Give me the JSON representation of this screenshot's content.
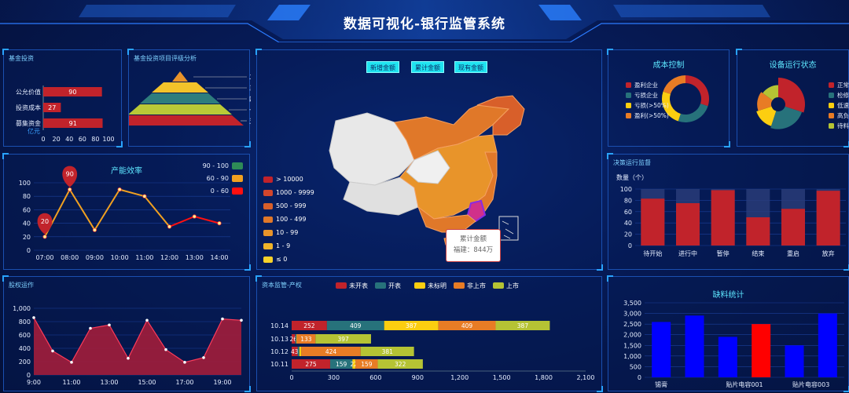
{
  "header": {
    "title": "数据可视化-银行监管系统"
  },
  "panels": {
    "fund_investment": "基金投资",
    "rating_analysis": "基金投资项目评级分析",
    "capacity": "产能效率",
    "equity": "股权运作",
    "cost_control": "成本控制",
    "device_status": "设备运行状态",
    "decision": "决策运行监督",
    "capital": "资本监管-产权",
    "material": "缺料统计"
  },
  "map": {
    "buttons": [
      "新增金额",
      "累计金额",
      "现有金额"
    ],
    "legend": [
      {
        "label": "> 10000",
        "color": "#c1232b"
      },
      {
        "label": "1000 - 9999",
        "color": "#d2462c"
      },
      {
        "label": "500 - 999",
        "color": "#d85f2a"
      },
      {
        "label": "100 - 499",
        "color": "#e07829"
      },
      {
        "label": "10 - 99",
        "color": "#e8942a"
      },
      {
        "label": "1 - 9",
        "color": "#f0b42a"
      },
      {
        "label": "≤ 0",
        "color": "#f7d22a"
      }
    ],
    "tooltip": {
      "title": "累计金额",
      "value": "福建：844万"
    }
  },
  "chart_data": [
    {
      "type": "bar",
      "orientation": "horizontal",
      "categories": [
        "公允价值",
        "投资成本",
        "募集资金"
      ],
      "values": [
        90,
        27,
        91
      ],
      "xlabel": "亿元",
      "xticks": [
        "0",
        "20",
        "40",
        "60",
        "80",
        "100"
      ],
      "xlim": [
        0,
        100
      ]
    },
    {
      "type": "pyramid",
      "categories": [
        "二星",
        "三星",
        "四星",
        "一星",
        "五星"
      ],
      "colors": [
        "#e8932a",
        "#f3c32a",
        "#2e7d7d",
        "#b9c937",
        "#c1232b"
      ]
    },
    {
      "type": "line",
      "x": [
        "07:00",
        "08:00",
        "09:00",
        "10:00",
        "11:00",
        "12:00",
        "13:00",
        "14:00"
      ],
      "values": [
        20,
        90,
        30,
        90,
        80,
        35,
        50,
        40
      ],
      "ylim": [
        0,
        100
      ],
      "yticks": [
        "0",
        "20",
        "40",
        "60",
        "80",
        "100"
      ],
      "markers": [
        {
          "label": "90",
          "index": 1
        },
        {
          "label": "20",
          "index": 0
        }
      ],
      "visual_map": [
        {
          "label": "90 - 100",
          "color": "#2e8b57"
        },
        {
          "label": "60 - 90",
          "color": "#f0a020"
        },
        {
          "label": "0 - 60",
          "color": "#ff1010"
        }
      ]
    },
    {
      "type": "area",
      "x": [
        "9:00",
        "10:00",
        "11:00",
        "12:00",
        "13:00",
        "14:00",
        "15:00",
        "16:00",
        "17:00",
        "18:00",
        "19:00",
        "20:00"
      ],
      "values": [
        860,
        360,
        190,
        700,
        750,
        250,
        820,
        380,
        190,
        260,
        840,
        820
      ],
      "xticks": [
        "9:00",
        "11:00",
        "13:00",
        "15:00",
        "17:00",
        "19:00"
      ],
      "ylim": [
        0,
        1000
      ],
      "yticks": [
        "0",
        "200",
        "400",
        "600",
        "800",
        "1,000"
      ]
    },
    {
      "type": "pie",
      "title": "成本控制",
      "categories": [
        "盈利企业",
        "亏损企业",
        "亏损(>50%)",
        "盈利(>50%)"
      ],
      "legend_text": [
        "盈利企业",
        "亏损企业",
        "亏损(>50%)",
        "盈利(>50%)"
      ],
      "values": [
        30,
        25,
        25,
        20
      ],
      "colors": [
        "#c1232b",
        "#27727b",
        "#fcce10",
        "#e87c25"
      ]
    },
    {
      "type": "pie",
      "title": "设备运行状态",
      "categories": [
        "正常",
        "检修",
        "低速",
        "高负荷",
        "待料"
      ],
      "legend_text": [
        "正常",
        "检修",
        "低速",
        "高负",
        "待料"
      ],
      "values": [
        30,
        25,
        15,
        15,
        15
      ],
      "colors": [
        "#c1232b",
        "#27727b",
        "#fcce10",
        "#e87c25",
        "#b5c334"
      ]
    },
    {
      "type": "bar",
      "ylabel": "数量（个）",
      "categories": [
        "待开始",
        "进行中",
        "暂停",
        "结束",
        "重启",
        "放弃"
      ],
      "values": [
        83,
        75,
        98,
        50,
        65,
        97
      ],
      "ylim": [
        0,
        100
      ],
      "yticks": [
        "0",
        "20",
        "40",
        "60",
        "80",
        "100"
      ],
      "color": "#c1232b"
    },
    {
      "type": "bar",
      "orientation": "horizontal",
      "stacked": true,
      "categories": [
        "10.14",
        "10.13",
        "10.12",
        "10.11"
      ],
      "series": [
        {
          "name": "未开表",
          "color": "#c1232b",
          "values": [
            252,
            26,
            43,
            275
          ],
          "labels": [
            "252",
            "26",
            "43",
            "275"
          ]
        },
        {
          "name": "开表",
          "color": "#27727b",
          "values": [
            409,
            8,
            12,
            159
          ],
          "labels": [
            "409",
            "",
            "",
            "159"
          ]
        },
        {
          "name": "未标明",
          "color": "#fcce10",
          "values": [
            387,
            3,
            14,
            22
          ],
          "labels": [
            "387",
            "",
            "",
            "22"
          ]
        },
        {
          "name": "非上市",
          "color": "#e87c25",
          "values": [
            409,
            133,
            424,
            159
          ],
          "labels": [
            "409",
            "133",
            "424",
            "159"
          ]
        },
        {
          "name": "上市",
          "color": "#b5c334",
          "values": [
            387,
            397,
            381,
            322
          ],
          "labels": [
            "387",
            "397",
            "381",
            "322"
          ]
        }
      ],
      "xlim": [
        0,
        2100
      ],
      "xticks": [
        "0",
        "300",
        "600",
        "900",
        "1,200",
        "1,500",
        "1,800",
        "2,100"
      ]
    },
    {
      "type": "bar",
      "title": "缺料统计",
      "categories": [
        "锡膏",
        "",
        "贴片电容001",
        "",
        "贴片电容003",
        ""
      ],
      "values": [
        2600,
        2900,
        1900,
        2500,
        1500,
        3000
      ],
      "colors": [
        "#0000ff",
        "#0000ff",
        "#0000ff",
        "#ff0000",
        "#0000ff",
        "#0000ff"
      ],
      "ylim": [
        0,
        3500
      ],
      "yticks": [
        "0",
        "500",
        "1,000",
        "1,500",
        "2,000",
        "2,500",
        "3,000",
        "3,500"
      ]
    }
  ]
}
